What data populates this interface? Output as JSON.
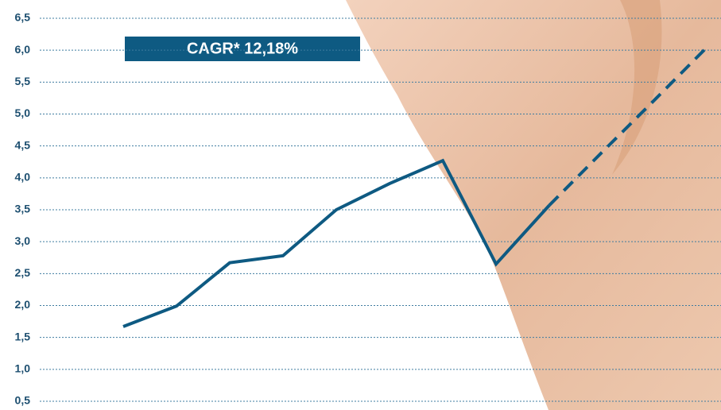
{
  "chart_data": {
    "type": "line",
    "annotation": "CAGR* 12,18%",
    "categories": [
      null,
      null,
      null,
      null,
      null,
      null,
      null,
      null,
      null,
      null,
      null,
      null
    ],
    "series": [
      {
        "color": "#0e5a82",
        "style": "solid",
        "values": [
          1.67,
          1.99,
          2.67,
          2.78,
          3.5,
          3.91,
          4.27,
          2.65,
          3.57,
          null,
          null,
          null
        ]
      },
      {
        "color": "#0e5a82",
        "style": "dashed",
        "values": [
          null,
          null,
          null,
          null,
          null,
          null,
          null,
          null,
          3.57,
          4.41,
          5.24,
          6.08
        ]
      }
    ],
    "ylim": [
      0.5,
      6.5
    ],
    "yticks": [
      {
        "value": 0.5,
        "label": "0,5"
      },
      {
        "value": 1,
        "label": "1,0"
      },
      {
        "value": 1.5,
        "label": "1,5"
      },
      {
        "value": 2,
        "label": "2,0"
      },
      {
        "value": 2.5,
        "label": "2,5"
      },
      {
        "value": 3,
        "label": "3,0"
      },
      {
        "value": 3.5,
        "label": "3,5"
      },
      {
        "value": 4,
        "label": "4,0"
      },
      {
        "value": 4.5,
        "label": "4,5"
      },
      {
        "value": 5,
        "label": "5,0"
      },
      {
        "value": 5.5,
        "label": "5,5"
      },
      {
        "value": 6,
        "label": "6,0"
      },
      {
        "value": 6.5,
        "label": "6,5"
      }
    ],
    "grid": true
  }
}
